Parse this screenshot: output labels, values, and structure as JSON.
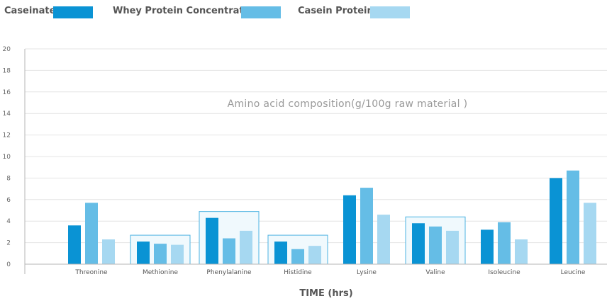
{
  "chart_data": {
    "type": "bar",
    "title": "Amino acid composition(g/100g raw material )",
    "xlabel": "TIME (hrs)",
    "ylabel": "",
    "ylim": [
      0,
      20
    ],
    "yticks": [
      0,
      2,
      4,
      6,
      8,
      10,
      12,
      14,
      16,
      18,
      20
    ],
    "grid": true,
    "legend_position": "top",
    "categories": [
      "Threonine",
      "Methionine",
      "Phenylalanine",
      "Histidine",
      "Lysine",
      "Valine",
      "Isoleucine",
      "Leucine"
    ],
    "highlighted_categories": [
      "Methionine",
      "Phenylalanine",
      "Histidine",
      "Valine"
    ],
    "series": [
      {
        "name": "Caseinate",
        "color": "#0a93d4",
        "values": [
          3.6,
          2.1,
          4.3,
          2.1,
          6.4,
          3.8,
          3.2,
          8.0
        ]
      },
      {
        "name": "Whey Protein Concentrate",
        "color": "#65bde6",
        "values": [
          5.7,
          1.9,
          2.4,
          1.4,
          7.1,
          3.5,
          3.9,
          8.7
        ]
      },
      {
        "name": "Casein Protein",
        "color": "#a6d8f1",
        "values": [
          2.3,
          1.8,
          3.1,
          1.7,
          4.6,
          3.1,
          2.3,
          5.7
        ]
      }
    ]
  }
}
